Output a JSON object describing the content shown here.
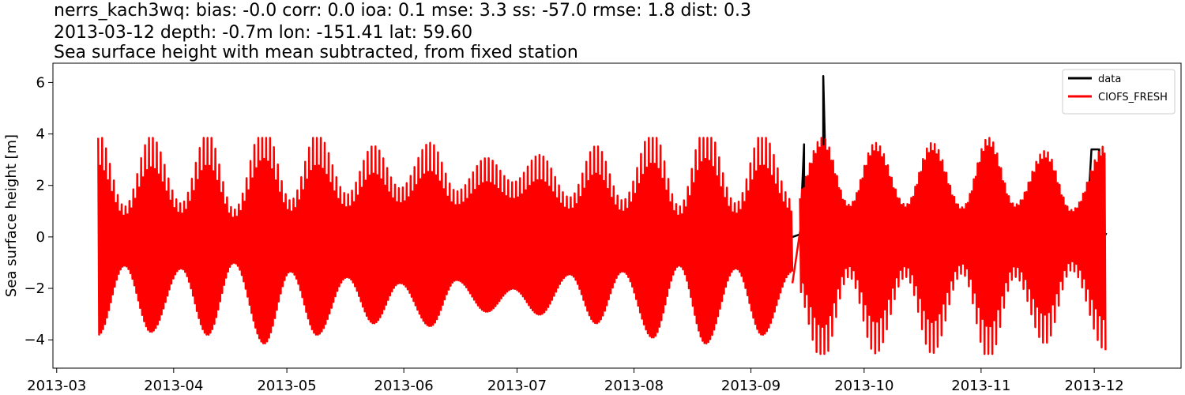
{
  "title": {
    "line1": "nerrs_kach3wq: bias: -0.0  corr: 0.0  ioa: 0.1  mse: 3.3  ss: -57.0  rmse: 1.8  dist: 0.3",
    "line2": "2013-03-12 depth: -0.7m lon: -151.41 lat: 59.60",
    "line3": "Sea surface height with mean subtracted, from fixed station"
  },
  "chart_data": {
    "type": "line",
    "title": "nerrs_kach3wq: bias: -0.0  corr: 0.0  ioa: 0.1  mse: 3.3  ss: -57.0  rmse: 1.8  dist: 0.3",
    "xlabel": "",
    "ylabel": "Sea surface height [m]",
    "x_ticks": [
      "2013-03",
      "2013-04",
      "2013-05",
      "2013-06",
      "2013-07",
      "2013-08",
      "2013-09",
      "2013-10",
      "2013-11",
      "2013-12"
    ],
    "y_ticks": [
      -4,
      -2,
      0,
      2,
      4,
      6
    ],
    "xlim": [
      "2013-02-28",
      "2013-12-24"
    ],
    "ylim": [
      -5.1,
      6.75
    ],
    "grid": false,
    "legend_position": "top-right",
    "series": [
      {
        "name": "data",
        "color": "#000000",
        "x": [
          "2013-03-12",
          "2013-03-13",
          "2013-09-12",
          "2013-09-14",
          "2013-09-15",
          "2013-09-15",
          "2013-09-15",
          "2013-09-20",
          "2013-09-20",
          "2013-09-21",
          "2013-09-29",
          "2013-09-30",
          "2013-11-29",
          "2013-11-30",
          "2013-11-30",
          "2013-12-02",
          "2013-12-02",
          "2013-12-04"
        ],
        "y": [
          0.1,
          0.1,
          0.0,
          0.1,
          3.6,
          -1.8,
          0.3,
          0.3,
          6.25,
          0.3,
          0.0,
          0.2,
          0.8,
          3.4,
          3.4,
          3.4,
          0.2,
          0.1
        ]
      },
      {
        "name": "CIOFS_FRESH",
        "color": "#ff0000",
        "x": [
          "2013-03-12",
          "2013-03-19",
          "2013-03-26",
          "2013-04-03",
          "2013-04-10",
          "2013-04-17",
          "2013-04-25",
          "2013-05-02",
          "2013-05-09",
          "2013-05-17",
          "2013-05-24",
          "2013-05-31",
          "2013-06-08",
          "2013-06-15",
          "2013-06-23",
          "2013-06-30",
          "2013-07-07",
          "2013-07-15",
          "2013-07-22",
          "2013-07-29",
          "2013-08-06",
          "2013-08-13",
          "2013-08-20",
          "2013-08-28",
          "2013-09-04",
          "2013-09-12",
          "2013-09-20",
          "2013-09-27",
          "2013-10-04",
          "2013-10-12",
          "2013-10-19",
          "2013-10-27",
          "2013-11-03",
          "2013-11-10",
          "2013-11-18",
          "2013-11-25",
          "2013-12-04"
        ],
        "amplitude": [
          3.4,
          1.0,
          3.3,
          1.1,
          3.4,
          0.9,
          3.7,
          1.2,
          3.4,
          1.4,
          3.0,
          1.6,
          3.1,
          1.5,
          2.6,
          1.8,
          2.7,
          1.3,
          3.0,
          1.2,
          3.5,
          1.0,
          3.7,
          1.1,
          3.4,
          1.2,
          3.7,
          1.2,
          3.5,
          1.2,
          3.5,
          1.1,
          3.7,
          1.2,
          3.2,
          1.0,
          3.4
        ],
        "gap": [
          "2013-09-12",
          "2013-09-14"
        ],
        "min_value": -4.55,
        "max_value": 3.85
      }
    ]
  }
}
